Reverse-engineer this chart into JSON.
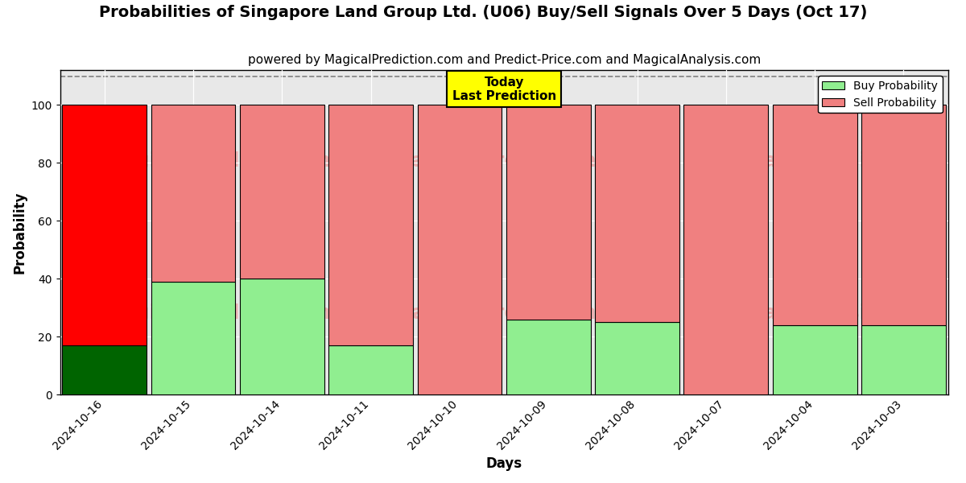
{
  "title": "Probabilities of Singapore Land Group Ltd. (U06) Buy/Sell Signals Over 5 Days (Oct 17)",
  "subtitle": "powered by MagicalPrediction.com and Predict-Price.com and MagicalAnalysis.com",
  "xlabel": "Days",
  "ylabel": "Probability",
  "categories": [
    "2024-10-16",
    "2024-10-15",
    "2024-10-14",
    "2024-10-11",
    "2024-10-10",
    "2024-10-09",
    "2024-10-08",
    "2024-10-07",
    "2024-10-04",
    "2024-10-03"
  ],
  "buy_values": [
    17,
    39,
    40,
    17,
    0,
    26,
    25,
    0,
    24,
    24
  ],
  "sell_values": [
    83,
    61,
    60,
    83,
    100,
    74,
    75,
    100,
    76,
    76
  ],
  "today_annotation": "Today\nLast Prediction",
  "ylim": [
    0,
    112
  ],
  "yticks": [
    0,
    20,
    40,
    60,
    80,
    100
  ],
  "dashed_line_y": 110,
  "buy_color_today": "#006400",
  "sell_color_today": "#ff0000",
  "buy_color_normal": "#90ee90",
  "sell_color_normal": "#f08080",
  "legend_buy_label": "Buy Probability",
  "legend_sell_label": "Sell Probability",
  "background_color": "#ffffff",
  "plot_bg_color": "#e8e8e8",
  "annotation_bg_color": "#ffff00",
  "annotation_fontsize": 11,
  "title_fontsize": 14,
  "subtitle_fontsize": 11,
  "axis_label_fontsize": 12,
  "tick_fontsize": 10,
  "bar_width": 0.95,
  "watermark_color": "#f08080",
  "watermark_alpha": 0.5,
  "watermark_fontsize": 18
}
